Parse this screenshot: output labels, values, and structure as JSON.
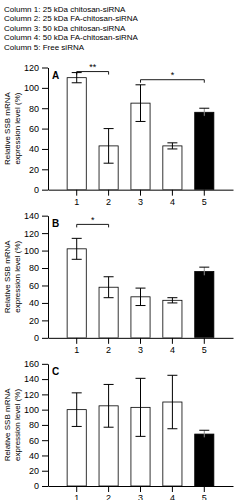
{
  "chart_data": [
    {
      "type": "bar",
      "title": "A",
      "annotations": [
        "Column 1: 25 kDa chitosan-siRNA",
        "Column 2: 25 kDa FA-chitosan-siRNA",
        "Column 3: 50 kDa chitosan-siRNA",
        "Column 4: 50 kDa FA-chitosan-siRNA",
        "Column 5: Free siRNA"
      ],
      "ylabel": "Relative SSB mRNA\nexpression level (%)",
      "categories": [
        "1",
        "2",
        "3",
        "4",
        "5"
      ],
      "values": [
        110,
        43,
        85,
        43,
        76
      ],
      "errors": [
        5,
        17,
        18,
        3,
        4
      ],
      "colors": [
        "white",
        "white",
        "white",
        "white",
        "black"
      ],
      "significance": [
        {
          "from": "1",
          "to": "2",
          "y": 116,
          "label": "**"
        },
        {
          "from": "3",
          "to": "5",
          "y": 108,
          "label": "*"
        }
      ],
      "ylim": [
        0,
        120
      ],
      "yticks": [
        0,
        20,
        40,
        60,
        80,
        100,
        120
      ],
      "grid": false
    },
    {
      "type": "bar",
      "title": "B",
      "ylabel": "Relative SSB mRNA\nexpression level (%)",
      "categories": [
        "1",
        "2",
        "3",
        "4",
        "5"
      ],
      "values": [
        102,
        58,
        47,
        43,
        76
      ],
      "errors": [
        12,
        12,
        10,
        3,
        5
      ],
      "colors": [
        "white",
        "white",
        "white",
        "white",
        "black"
      ],
      "significance": [
        {
          "from": "1",
          "to": "2",
          "y": 130,
          "label": "*"
        }
      ],
      "ylim": [
        0,
        140
      ],
      "yticks": [
        0,
        20,
        40,
        60,
        80,
        100,
        120,
        140
      ],
      "grid": false
    },
    {
      "type": "bar",
      "title": "C",
      "ylabel": "Relative SSB mRNA\nexpression level (%)",
      "categories": [
        "1",
        "2",
        "3",
        "4",
        "5"
      ],
      "values": [
        100,
        105,
        103,
        110,
        68
      ],
      "errors": [
        22,
        28,
        38,
        35,
        5
      ],
      "colors": [
        "white",
        "white",
        "white",
        "white",
        "black"
      ],
      "significance": [],
      "ylim": [
        0,
        160
      ],
      "yticks": [
        0,
        20,
        40,
        60,
        80,
        100,
        120,
        140,
        160
      ],
      "grid": false
    }
  ]
}
